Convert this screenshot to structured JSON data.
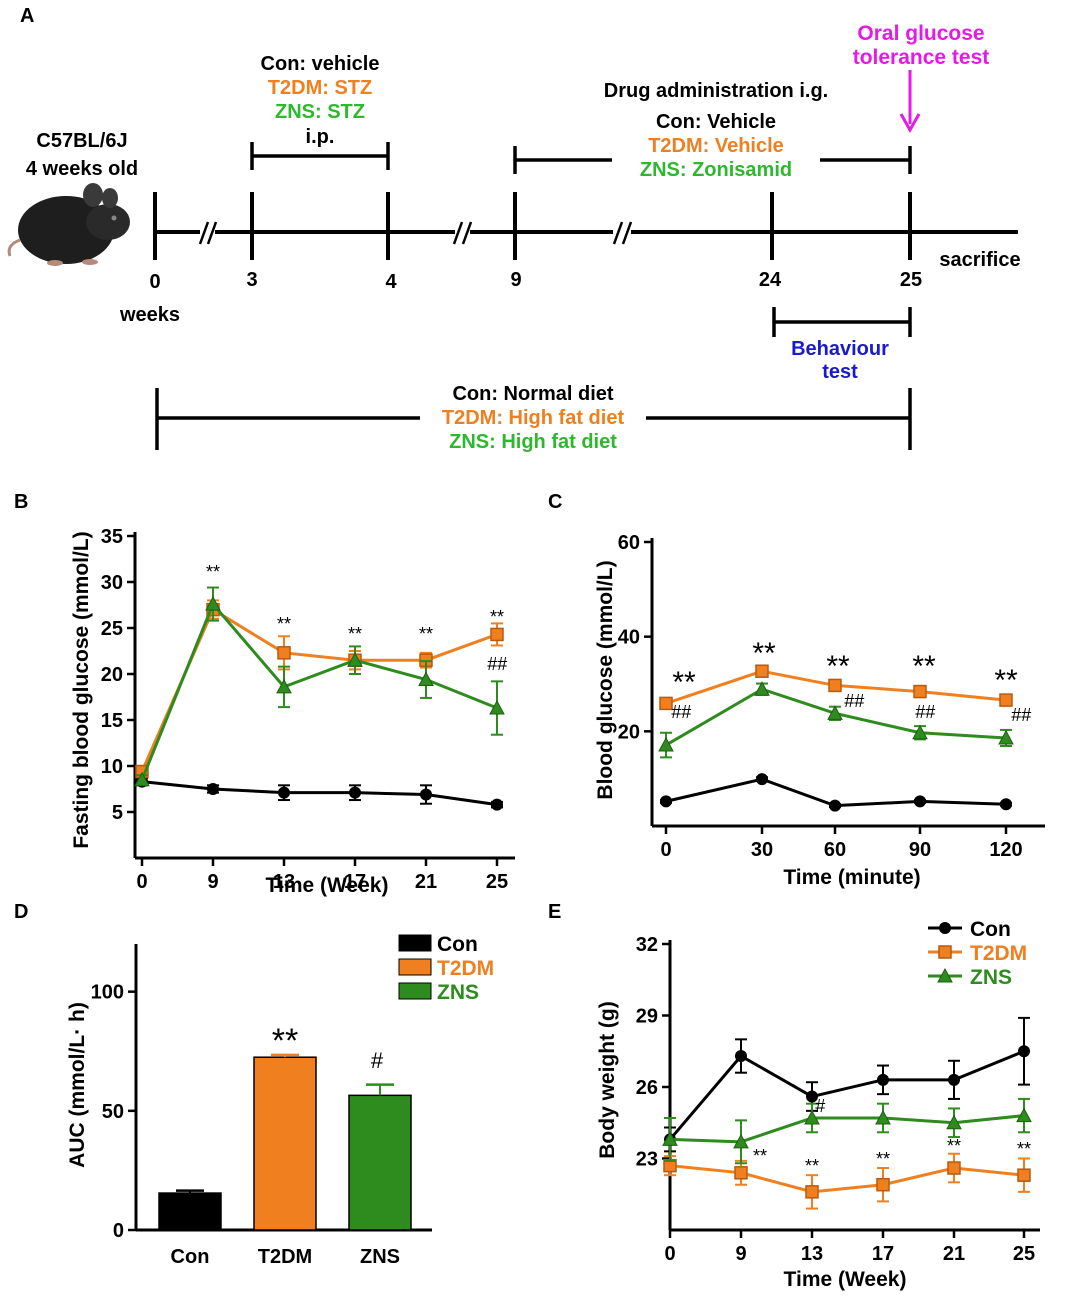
{
  "colors": {
    "con": "#000000",
    "t2dm": "#f07f1f",
    "zns": "#2e8b1e",
    "ogtt": "#e619e6",
    "behaviour": "#1a1acc",
    "zns_text": "#2db82d"
  },
  "panel_labels": {
    "a": "A",
    "b": "B",
    "c": "C",
    "d": "D",
    "e": "E"
  },
  "timeline": {
    "mouse_strain": "C57BL/6J",
    "mouse_age": "4 weeks old",
    "mouse_icon": "mouse-icon",
    "ticks": [
      "0",
      "3",
      "4",
      "9",
      "24",
      "25"
    ],
    "weeks_label": "weeks",
    "sacrifice": "sacrifice",
    "stz": {
      "con": "Con: vehicle",
      "t2dm": "T2DM: STZ",
      "zns": "ZNS: STZ",
      "route": "i.p."
    },
    "drug": {
      "title": "Drug administration i.g.",
      "con": "Con: Vehicle",
      "t2dm": "T2DM: Vehicle",
      "zns": "ZNS: Zonisamid"
    },
    "ogtt": {
      "line1": "Oral glucose",
      "line2": "tolerance test"
    },
    "behaviour": {
      "line1": "Behaviour",
      "line2": "test"
    },
    "diet": {
      "con": "Con: Normal diet",
      "t2dm": "T2DM: High fat diet",
      "zns": "ZNS: High fat diet"
    }
  },
  "chart_data": [
    {
      "id": "B",
      "type": "line",
      "xlabel": "Time (Week)",
      "ylabel": "Fasting blood glucose (mmol/L)",
      "categories": [
        "0",
        "9",
        "13",
        "17",
        "21",
        "25"
      ],
      "yticks": [
        "5",
        "10",
        "15",
        "20",
        "25",
        "30",
        "35"
      ],
      "ylim": [
        0,
        35
      ],
      "series": [
        {
          "name": "Con",
          "values": [
            8.3,
            7.5,
            7.1,
            7.1,
            6.9,
            5.8
          ],
          "err": [
            0.4,
            0.4,
            0.8,
            0.8,
            1.0,
            0.3
          ]
        },
        {
          "name": "T2DM",
          "values": [
            9.4,
            27.0,
            22.3,
            21.5,
            21.5,
            24.3
          ],
          "err": [
            0.5,
            1.0,
            1.8,
            1.0,
            0.8,
            1.2
          ]
        },
        {
          "name": "ZNS",
          "values": [
            8.5,
            27.6,
            18.6,
            21.5,
            19.4,
            16.3
          ],
          "err": [
            0.5,
            1.8,
            2.2,
            1.5,
            2.0,
            2.9
          ]
        }
      ],
      "annotations": [
        {
          "category": "9",
          "label": "**"
        },
        {
          "category": "13",
          "label": "**"
        },
        {
          "category": "17",
          "label": "**"
        },
        {
          "category": "21",
          "label": "**"
        },
        {
          "category": "25",
          "label": "**"
        },
        {
          "category": "25",
          "label": "##"
        }
      ]
    },
    {
      "id": "C",
      "type": "line",
      "xlabel": "Time (minute)",
      "ylabel": "Blood glucose (mmol/L)",
      "categories": [
        "0",
        "30",
        "60",
        "90",
        "120"
      ],
      "yticks": [
        "20",
        "40",
        "60"
      ],
      "ylim": [
        0,
        60
      ],
      "series": [
        {
          "name": "Con",
          "values": [
            5.2,
            9.9,
            4.3,
            5.2,
            4.6
          ],
          "err": [
            0.3,
            0.4,
            0.3,
            0.3,
            0.3
          ]
        },
        {
          "name": "T2DM",
          "values": [
            25.9,
            32.7,
            29.7,
            28.4,
            26.6
          ],
          "err": [
            0.8,
            0.8,
            0.7,
            0.8,
            0.8
          ]
        },
        {
          "name": "ZNS",
          "values": [
            17.1,
            28.9,
            23.8,
            19.7,
            18.6
          ],
          "err": [
            2.6,
            1.2,
            1.4,
            1.4,
            1.7
          ]
        }
      ],
      "annotations": [
        {
          "category": "0",
          "label": "**"
        },
        {
          "category": "30",
          "label": "**"
        },
        {
          "category": "60",
          "label": "**"
        },
        {
          "category": "90",
          "label": "**"
        },
        {
          "category": "120",
          "label": "**"
        },
        {
          "category": "0",
          "label": "##"
        },
        {
          "category": "60",
          "label": "##"
        },
        {
          "category": "90",
          "label": "##"
        },
        {
          "category": "120",
          "label": "##"
        }
      ]
    },
    {
      "id": "D",
      "type": "bar",
      "ylabel": "AUC (mmol/L· h)",
      "categories": [
        "Con",
        "T2DM",
        "ZNS"
      ],
      "values": [
        15.5,
        72.5,
        56.5
      ],
      "err": [
        1.0,
        1.0,
        4.5
      ],
      "yticks": [
        "0",
        "50",
        "100"
      ],
      "ylim": [
        0,
        120
      ],
      "legend": [
        "Con",
        "T2DM",
        "ZNS"
      ],
      "annotations": [
        {
          "category": "T2DM",
          "label": "**"
        },
        {
          "category": "ZNS",
          "label": "#"
        }
      ]
    },
    {
      "id": "E",
      "type": "line",
      "xlabel": "Time (Week)",
      "ylabel": "Body weight (g)",
      "categories": [
        "0",
        "9",
        "13",
        "17",
        "21",
        "25"
      ],
      "yticks": [
        "23",
        "26",
        "29",
        "32"
      ],
      "ylim": [
        20,
        32
      ],
      "legend": [
        "Con",
        "T2DM",
        "ZNS"
      ],
      "series": [
        {
          "name": "Con",
          "values": [
            23.8,
            27.3,
            25.6,
            26.3,
            26.3,
            27.5
          ],
          "err": [
            0.5,
            0.7,
            0.6,
            0.6,
            0.8,
            1.4
          ]
        },
        {
          "name": "T2DM",
          "values": [
            22.7,
            22.4,
            21.6,
            21.9,
            22.6,
            22.3
          ],
          "err": [
            0.4,
            0.5,
            0.7,
            0.7,
            0.6,
            0.7
          ]
        },
        {
          "name": "ZNS",
          "values": [
            23.8,
            23.7,
            24.7,
            24.7,
            24.5,
            24.8
          ],
          "err": [
            0.9,
            0.9,
            0.6,
            0.6,
            0.6,
            0.7
          ]
        }
      ],
      "annotations": [
        {
          "category": "9",
          "label": "**"
        },
        {
          "category": "13",
          "label": "**"
        },
        {
          "category": "13",
          "label": "#"
        },
        {
          "category": "17",
          "label": "**"
        },
        {
          "category": "21",
          "label": "**"
        },
        {
          "category": "25",
          "label": "**"
        }
      ]
    }
  ]
}
